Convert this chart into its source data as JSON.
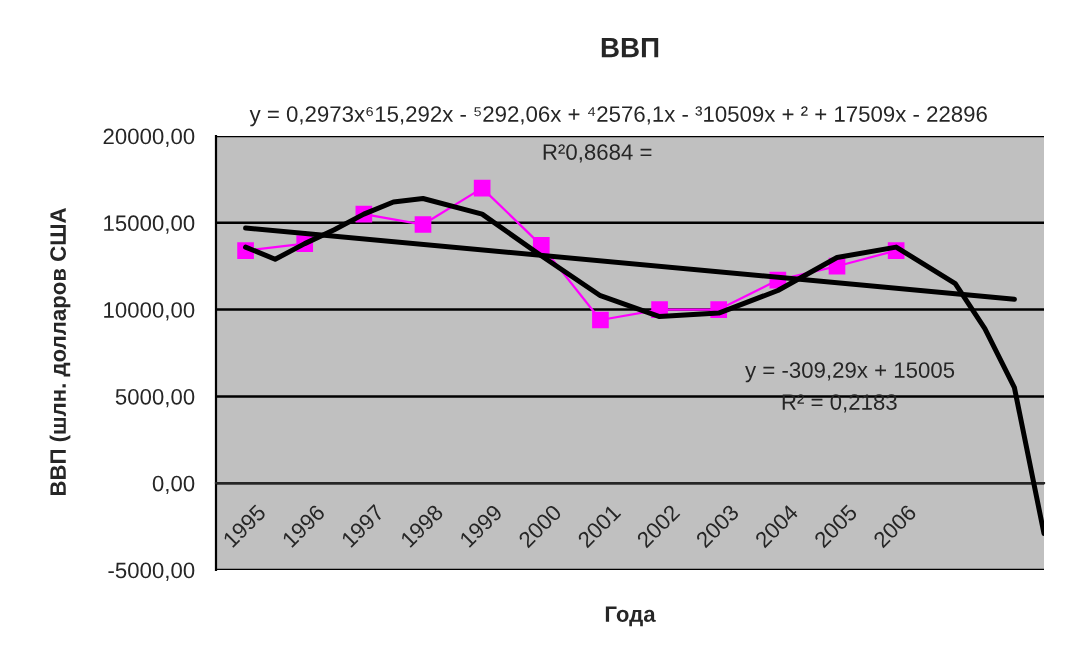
{
  "chart_data": {
    "type": "line",
    "title": "ВВП",
    "xlabel": "Года",
    "ylabel": "ВВП (шлн. долларов США",
    "x": [
      1995,
      1996,
      1997,
      1998,
      1999,
      2000,
      2001,
      2002,
      2003,
      2004,
      2005,
      2006
    ],
    "series": [
      {
        "color": "#ff00ff",
        "marker": "square",
        "values": [
          13400,
          13800,
          15500,
          14900,
          17000,
          13700,
          9400,
          10000,
          10000,
          11700,
          12500,
          13400
        ]
      },
      {
        "type": "line",
        "color": "#000000",
        "x": [
          1995,
          1995.5,
          1996,
          1996.5,
          1997,
          1997.5,
          1998,
          1999,
          2000,
          2001,
          2002,
          2003,
          2004,
          2005,
          2006,
          2007,
          2007.5,
          2008,
          2008.5
        ],
        "values": [
          13600,
          12900,
          13800,
          14600,
          15500,
          16200,
          16400,
          15500,
          13100,
          10800,
          9600,
          9800,
          11100,
          13000,
          13600,
          11500,
          8900,
          5500,
          -2900
        ]
      },
      {
        "type": "line",
        "color": "#000000",
        "x": [
          1995,
          2008
        ],
        "values": [
          14700,
          10600
        ]
      }
    ],
    "xlim": [
      1994.5,
      2008.5
    ],
    "xticks": [
      1995,
      1996,
      1997,
      1998,
      1999,
      2000,
      2001,
      2002,
      2003,
      2004,
      2005,
      2006
    ],
    "ylim": [
      -5000,
      20000
    ],
    "yticks": [
      {
        "value": -5000,
        "label": "-5000,00"
      },
      {
        "value": 0,
        "label": "0,00"
      },
      {
        "value": 5000,
        "label": "5000,00"
      },
      {
        "value": 10000,
        "label": "10000,00"
      },
      {
        "value": 15000,
        "label": "15000,00"
      },
      {
        "value": 20000,
        "label": "20000,00"
      }
    ],
    "grid": "y",
    "annotations": [
      "y = 0,2973x⁶15,292x - ⁵292,06x + ⁴2576,1x - ³10509x + ² + 17509x - 22896",
      "R²0,8684 =",
      "y = -309,29x + 15005",
      "R² = 0,2183"
    ]
  }
}
